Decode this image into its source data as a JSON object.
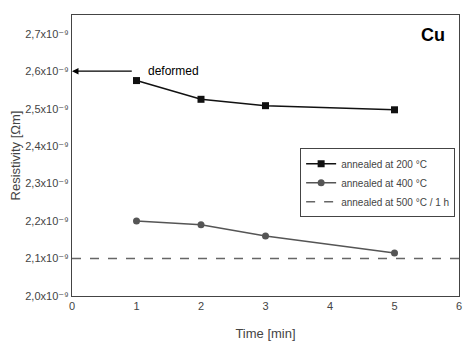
{
  "chart_data": {
    "type": "line",
    "title": "Cu",
    "x_label": "Time [min]",
    "y_label": "Resistivity [Ωm]",
    "xlim": [
      0,
      6
    ],
    "xticks": [
      0,
      1,
      2,
      3,
      4,
      5,
      6
    ],
    "ylim": [
      2e-09,
      2.75e-09
    ],
    "yticks": [
      {
        "value": 2e-09,
        "label": "2,0x10⁻⁹"
      },
      {
        "value": 2.1e-09,
        "label": "2,1x10⁻⁹"
      },
      {
        "value": 2.2e-09,
        "label": "2,2x10⁻⁹"
      },
      {
        "value": 2.3e-09,
        "label": "2,3x10⁻⁹"
      },
      {
        "value": 2.4e-09,
        "label": "2,4x10⁻⁹"
      },
      {
        "value": 2.5e-09,
        "label": "2,5x10⁻⁹"
      },
      {
        "value": 2.6e-09,
        "label": "2,6x10⁻⁹"
      },
      {
        "value": 2.7e-09,
        "label": "2,7x10⁻⁹"
      }
    ],
    "series": [
      {
        "name": "annealed at 200 °C",
        "color": "#111111",
        "marker": "square",
        "line_style": "solid",
        "x": [
          1,
          2,
          3,
          5
        ],
        "values": [
          2.575e-09,
          2.525e-09,
          2.508e-09,
          2.497e-09
        ]
      },
      {
        "name": "annealed at 400 °C",
        "color": "#555555",
        "marker": "circle",
        "line_style": "solid",
        "x": [
          1,
          2,
          3,
          5
        ],
        "values": [
          2.2e-09,
          2.19e-09,
          2.16e-09,
          2.115e-09
        ]
      },
      {
        "name": "annealed at 500 °C / 1 h",
        "color": "#666666",
        "type": "hline",
        "line_style": "dashed",
        "values": [
          2.1e-09
        ]
      }
    ],
    "annotations": [
      {
        "text": "deformed",
        "x": 1.15,
        "y": 2.6e-09,
        "arrow_x_start": 0.0,
        "arrow_x_end": 0.95
      }
    ],
    "legend": "lower right",
    "grid": false
  }
}
